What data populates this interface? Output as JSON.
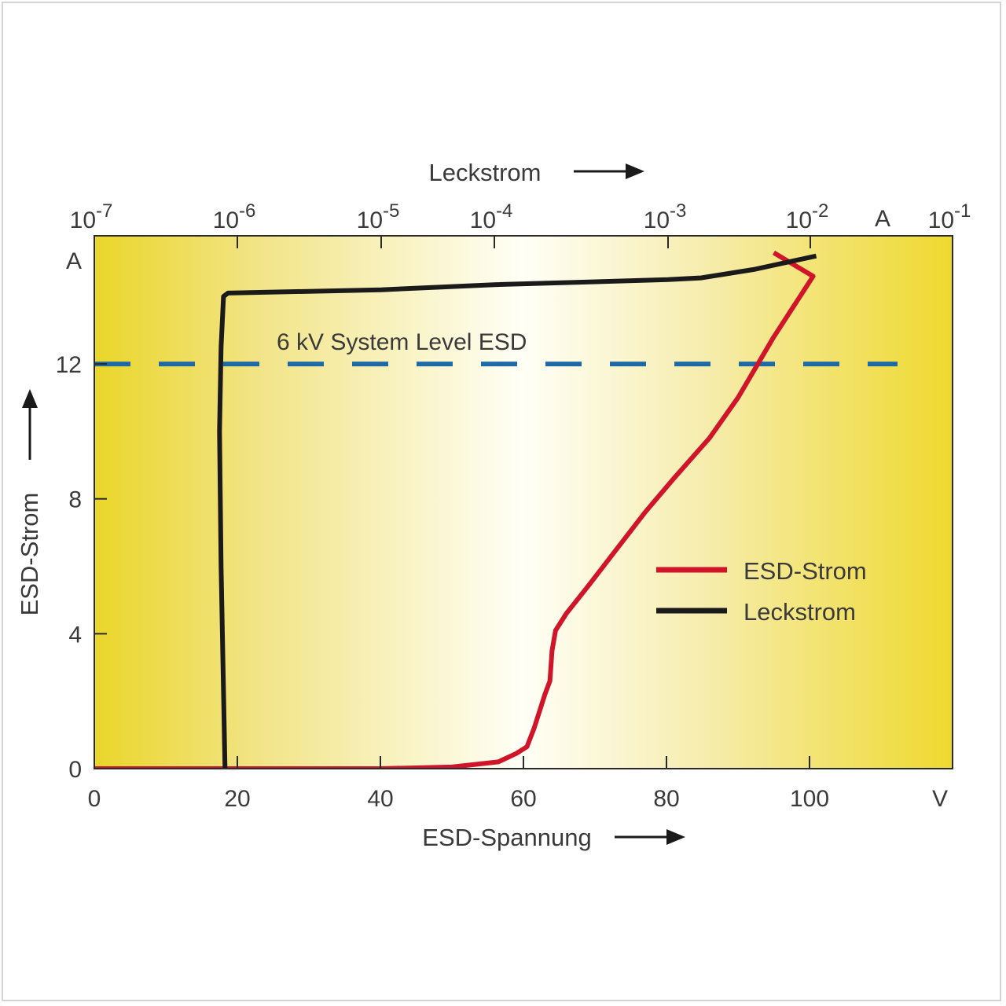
{
  "chart_data": {
    "type": "line",
    "annotation": "6 kV System Level ESD",
    "bottom_axis": {
      "label": "ESD-Spannung",
      "unit": "V",
      "range": [
        0,
        120
      ],
      "ticks": [
        {
          "value": 0,
          "label": "0"
        },
        {
          "value": 20,
          "label": "20"
        },
        {
          "value": 40,
          "label": "40"
        },
        {
          "value": 60,
          "label": "60"
        },
        {
          "value": 80,
          "label": "80"
        },
        {
          "value": 100,
          "label": "100"
        }
      ]
    },
    "left_axis": {
      "label": "ESD-Strom",
      "unit": "A",
      "range": [
        0,
        15.8
      ],
      "ticks": [
        {
          "value": 0,
          "label": "0"
        },
        {
          "value": 4,
          "label": "4"
        },
        {
          "value": 8,
          "label": "8"
        },
        {
          "value": 12,
          "label": "12"
        }
      ]
    },
    "top_axis": {
      "label": "Leckstrom",
      "unit": "A",
      "scale": "log",
      "ticks": [
        {
          "value": 1e-07,
          "base": "10",
          "exp": "-7"
        },
        {
          "value": 1e-06,
          "base": "10",
          "exp": "-6"
        },
        {
          "value": 1e-05,
          "base": "10",
          "exp": "-5"
        },
        {
          "value": 0.0001,
          "base": "10",
          "exp": "-4"
        },
        {
          "value": 0.001,
          "base": "10",
          "exp": "-3"
        },
        {
          "value": 0.01,
          "base": "10",
          "exp": "-2"
        },
        {
          "value": 0.1,
          "base": "10",
          "exp": "-1"
        }
      ]
    },
    "reference_line": {
      "y": 12,
      "style": "dashed",
      "color": "#1f6aa5"
    },
    "legend": {
      "position": "right-middle"
    },
    "series": [
      {
        "name": "ESD-Strom",
        "color": "#d0142a",
        "x_axis": "ESD-Spannung",
        "points": [
          [
            0,
            0
          ],
          [
            20,
            0
          ],
          [
            40,
            0
          ],
          [
            50,
            0.05
          ],
          [
            56.5,
            0.2
          ],
          [
            59,
            0.45
          ],
          [
            60.5,
            0.65
          ],
          [
            61.5,
            1.2
          ],
          [
            63,
            2.2
          ],
          [
            63.7,
            2.6
          ],
          [
            64,
            3.5
          ],
          [
            64.5,
            4.1
          ],
          [
            66,
            4.6
          ],
          [
            69,
            5.4
          ],
          [
            73,
            6.5
          ],
          [
            77,
            7.6
          ],
          [
            81,
            8.6
          ],
          [
            86,
            9.8
          ],
          [
            90,
            11
          ],
          [
            95,
            12.8
          ],
          [
            100.5,
            14.6
          ],
          [
            95,
            15.3
          ]
        ]
      },
      {
        "name": "Leckstrom",
        "color": "#1a1a1a",
        "x_axis": "Leckstrom",
        "points": [
          [
            8.2e-07,
            0
          ],
          [
            7.7e-07,
            6
          ],
          [
            7.5e-07,
            10
          ],
          [
            7.7e-07,
            12.5
          ],
          [
            8e-07,
            14
          ],
          [
            8.6e-07,
            14.1
          ],
          [
            1e-05,
            14.2
          ],
          [
            0.0001,
            14.35
          ],
          [
            0.001,
            14.5
          ],
          [
            0.0017,
            14.55
          ],
          [
            0.004,
            14.8
          ],
          [
            0.011,
            15.2
          ]
        ]
      }
    ]
  }
}
